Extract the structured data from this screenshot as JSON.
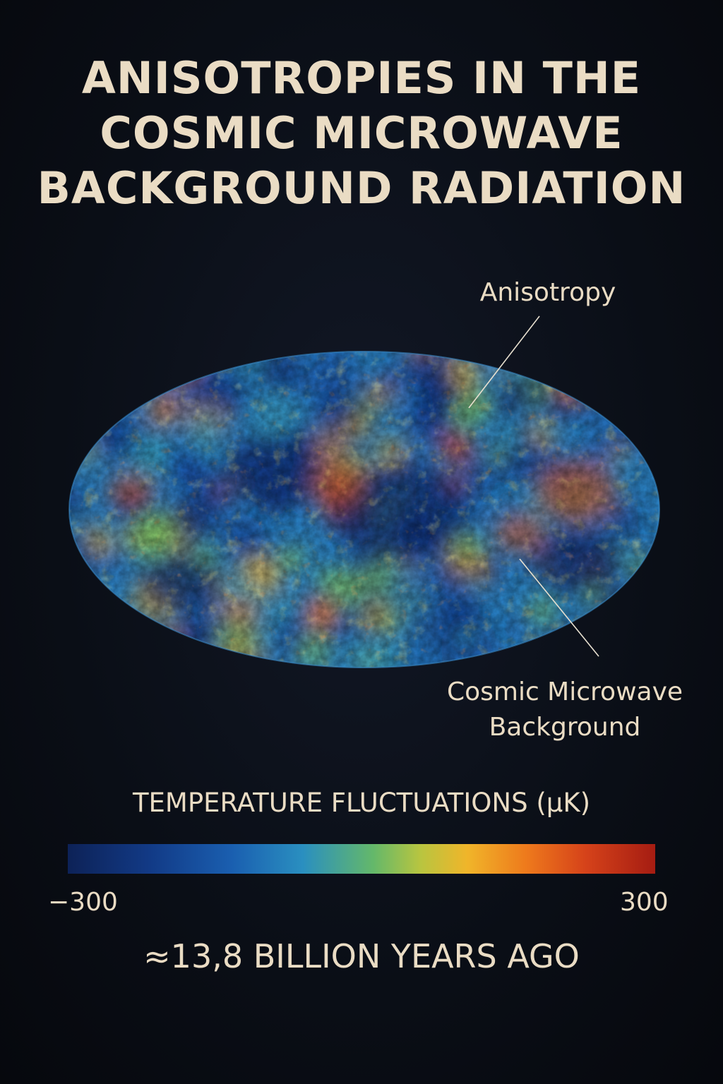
{
  "title": {
    "line1": "ANISOTROPIES IN THE",
    "line2": "COSMIC MICROWAVE",
    "line3": "BACKGROUND RADIATION"
  },
  "labels": {
    "anisotropy": "Anisotropy",
    "cmb_line1": "Cosmic Microwave",
    "cmb_line2": "Background"
  },
  "colorbar": {
    "title": "TEMPERATURE FLUCTUATIONS (μK)",
    "min_label": "−300",
    "max_label": "300",
    "min_value": -300,
    "max_value": 300,
    "colors": [
      "#0d2257",
      "#1a5fb0",
      "#2a8fc0",
      "#64b86a",
      "#f0b52a",
      "#ee7a1c",
      "#a51c12"
    ]
  },
  "footer": {
    "era": "≈13,8 BILLION YEARS AGO"
  },
  "colors": {
    "background": "#0a0e16",
    "text": "#eadcc4",
    "leader_line": "#e8e0d0"
  }
}
